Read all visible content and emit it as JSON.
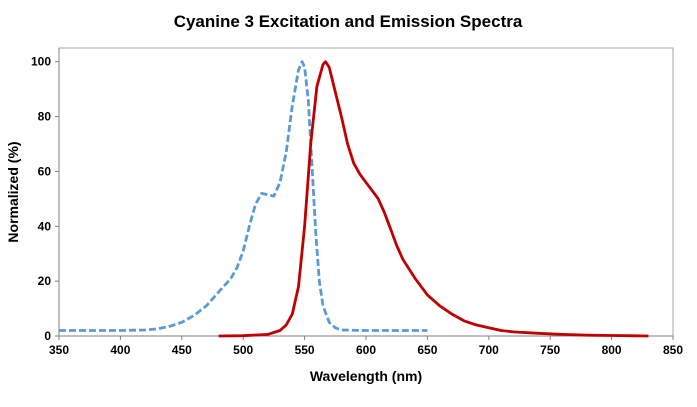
{
  "chart_data": {
    "type": "line",
    "title": "Cyanine 3 Excitation and Emission Spectra",
    "xlabel": "Wavelength (nm)",
    "ylabel": "Normalized (%)",
    "xlim": [
      350,
      850
    ],
    "ylim": [
      0,
      105
    ],
    "x_ticks": [
      "350",
      "400",
      "450",
      "500",
      "550",
      "600",
      "650",
      "700",
      "750",
      "800",
      "850"
    ],
    "y_ticks": [
      "0",
      "20",
      "40",
      "60",
      "80",
      "100"
    ],
    "grid": false,
    "legend": "none",
    "series": [
      {
        "style": "dashed",
        "color": "#5b9bd5",
        "points": [
          [
            350,
            2
          ],
          [
            400,
            2
          ],
          [
            420,
            2.2
          ],
          [
            430,
            2.6
          ],
          [
            440,
            3.5
          ],
          [
            450,
            5
          ],
          [
            460,
            7.5
          ],
          [
            470,
            11
          ],
          [
            480,
            16
          ],
          [
            490,
            21
          ],
          [
            495,
            25
          ],
          [
            500,
            31
          ],
          [
            505,
            40
          ],
          [
            510,
            48
          ],
          [
            515,
            52
          ],
          [
            520,
            51.5
          ],
          [
            525,
            51
          ],
          [
            530,
            56
          ],
          [
            535,
            67
          ],
          [
            540,
            84
          ],
          [
            545,
            97
          ],
          [
            548,
            100
          ],
          [
            550,
            98
          ],
          [
            553,
            86
          ],
          [
            556,
            62
          ],
          [
            559,
            38
          ],
          [
            562,
            20
          ],
          [
            565,
            11
          ],
          [
            570,
            5
          ],
          [
            575,
            3
          ],
          [
            580,
            2.2
          ],
          [
            600,
            2
          ],
          [
            650,
            2
          ]
        ]
      },
      {
        "style": "solid",
        "color": "#c00000",
        "points": [
          [
            480,
            0
          ],
          [
            500,
            0.1
          ],
          [
            520,
            0.6
          ],
          [
            530,
            2
          ],
          [
            535,
            4
          ],
          [
            540,
            8
          ],
          [
            545,
            18
          ],
          [
            550,
            40
          ],
          [
            555,
            70
          ],
          [
            560,
            91
          ],
          [
            565,
            99
          ],
          [
            567,
            100
          ],
          [
            570,
            98
          ],
          [
            575,
            89
          ],
          [
            580,
            80
          ],
          [
            585,
            70
          ],
          [
            590,
            63
          ],
          [
            595,
            59
          ],
          [
            600,
            56
          ],
          [
            605,
            53
          ],
          [
            610,
            50
          ],
          [
            615,
            45
          ],
          [
            620,
            39
          ],
          [
            625,
            33
          ],
          [
            630,
            28
          ],
          [
            640,
            21
          ],
          [
            650,
            15
          ],
          [
            660,
            11
          ],
          [
            670,
            8
          ],
          [
            680,
            5.5
          ],
          [
            690,
            4
          ],
          [
            700,
            3
          ],
          [
            710,
            2
          ],
          [
            720,
            1.5
          ],
          [
            740,
            1
          ],
          [
            760,
            0.6
          ],
          [
            780,
            0.3
          ],
          [
            800,
            0.2
          ],
          [
            830,
            0
          ]
        ]
      }
    ]
  }
}
